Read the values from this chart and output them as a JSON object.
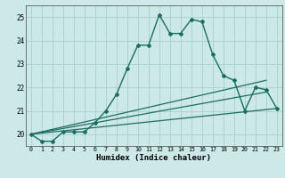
{
  "title": "",
  "xlabel": "Humidex (Indice chaleur)",
  "ylabel": "",
  "background_color": "#cce8e8",
  "grid_color": "#aacece",
  "line_color": "#1a6e60",
  "xlim": [
    -0.5,
    23.5
  ],
  "ylim": [
    19.5,
    25.5
  ],
  "yticks": [
    20,
    21,
    22,
    23,
    24,
    25
  ],
  "xticks": [
    0,
    1,
    2,
    3,
    4,
    5,
    6,
    7,
    8,
    9,
    10,
    11,
    12,
    13,
    14,
    15,
    16,
    17,
    18,
    19,
    20,
    21,
    22,
    23
  ],
  "series": [
    {
      "x": [
        0,
        1,
        2,
        3,
        4,
        5,
        6,
        7,
        8,
        9,
        10,
        11,
        12,
        13,
        14,
        15,
        16,
        17,
        18,
        19,
        20,
        21,
        22,
        23
      ],
      "y": [
        20.0,
        19.7,
        19.7,
        20.1,
        20.1,
        20.1,
        20.5,
        21.0,
        21.7,
        22.8,
        23.8,
        23.8,
        25.1,
        24.3,
        24.3,
        24.9,
        24.8,
        23.4,
        22.5,
        22.3,
        21.0,
        22.0,
        21.9,
        21.1
      ],
      "marker": "D",
      "markersize": 2.0,
      "linewidth": 1.0
    },
    {
      "x": [
        0,
        22
      ],
      "y": [
        20.0,
        22.3
      ],
      "marker": null,
      "linewidth": 0.9
    },
    {
      "x": [
        0,
        22
      ],
      "y": [
        20.0,
        21.8
      ],
      "marker": null,
      "linewidth": 0.9
    },
    {
      "x": [
        0,
        23
      ],
      "y": [
        20.0,
        21.1
      ],
      "marker": null,
      "linewidth": 0.9
    }
  ]
}
